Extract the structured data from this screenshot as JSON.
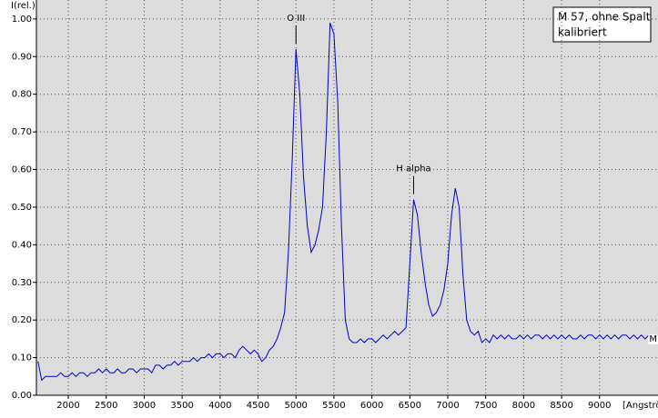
{
  "chart_data": {
    "type": "line",
    "y_label": "I(rel.)",
    "x_label": "[Angström]",
    "legend_text": [
      "M 57, ohne Spalt",
      "kalibriert"
    ],
    "annotations": [
      "O III",
      "H alpha"
    ],
    "grid": true,
    "xlim": [
      1580,
      9770
    ],
    "ylim": [
      0,
      1.02
    ],
    "xticks": [
      2000,
      2500,
      3000,
      3500,
      4000,
      4500,
      5000,
      5500,
      6000,
      6500,
      7000,
      7500,
      8000,
      8500,
      9000
    ],
    "yticks": [
      {
        "value": 0,
        "label": "0.00"
      },
      {
        "value": 0.1,
        "label": "0.10"
      },
      {
        "value": 0.2,
        "label": "0.20"
      },
      {
        "value": 0.3,
        "label": "0.30"
      },
      {
        "value": 0.4,
        "label": "0.40"
      },
      {
        "value": 0.5,
        "label": "0.50"
      },
      {
        "value": 0.6,
        "label": "0.60"
      },
      {
        "value": 0.7,
        "label": "0.70"
      },
      {
        "value": 0.8,
        "label": "0.80"
      },
      {
        "value": 0.9,
        "label": "0.90"
      },
      {
        "value": 1,
        "label": "1.00"
      }
    ],
    "x": [
      1600,
      1650,
      1700,
      1750,
      1800,
      1850,
      1900,
      1950,
      2000,
      2050,
      2100,
      2150,
      2200,
      2250,
      2300,
      2350,
      2400,
      2450,
      2500,
      2550,
      2600,
      2650,
      2700,
      2750,
      2800,
      2850,
      2900,
      2950,
      3000,
      3050,
      3100,
      3150,
      3200,
      3250,
      3300,
      3350,
      3400,
      3450,
      3500,
      3550,
      3600,
      3650,
      3700,
      3750,
      3800,
      3850,
      3900,
      3950,
      4000,
      4050,
      4100,
      4150,
      4200,
      4250,
      4300,
      4350,
      4400,
      4450,
      4500,
      4550,
      4600,
      4650,
      4700,
      4750,
      4800,
      4850,
      4900,
      4950,
      5000,
      5050,
      5100,
      5150,
      5200,
      5250,
      5300,
      5350,
      5400,
      5450,
      5500,
      5550,
      5600,
      5650,
      5700,
      5750,
      5800,
      5850,
      5900,
      5950,
      6000,
      6050,
      6100,
      6150,
      6200,
      6250,
      6300,
      6350,
      6400,
      6450,
      6500,
      6550,
      6600,
      6650,
      6700,
      6750,
      6800,
      6850,
      6900,
      6950,
      7000,
      7050,
      7100,
      7150,
      7200,
      7250,
      7300,
      7350,
      7400,
      7450,
      7500,
      7550,
      7600,
      7650,
      7700,
      7750,
      7800,
      7850,
      7900,
      7950,
      8000,
      8050,
      8100,
      8150,
      8200,
      8250,
      8300,
      8350,
      8400,
      8450,
      8500,
      8550,
      8600,
      8650,
      8700,
      8750,
      8800,
      8850,
      8900,
      8950,
      9000,
      9050,
      9100,
      9150,
      9200,
      9250,
      9300,
      9350,
      9400,
      9450,
      9500,
      9550,
      9600,
      9650,
      9700,
      9750
    ],
    "series": [
      {
        "name": "M 57",
        "color": "#0000cc",
        "values": [
          0.09,
          0.04,
          0.05,
          0.05,
          0.05,
          0.05,
          0.06,
          0.05,
          0.05,
          0.06,
          0.05,
          0.06,
          0.06,
          0.05,
          0.06,
          0.06,
          0.07,
          0.06,
          0.07,
          0.06,
          0.06,
          0.07,
          0.06,
          0.06,
          0.07,
          0.07,
          0.06,
          0.07,
          0.07,
          0.07,
          0.06,
          0.08,
          0.08,
          0.07,
          0.08,
          0.08,
          0.09,
          0.08,
          0.09,
          0.09,
          0.09,
          0.1,
          0.09,
          0.1,
          0.1,
          0.11,
          0.1,
          0.11,
          0.11,
          0.1,
          0.11,
          0.11,
          0.1,
          0.12,
          0.13,
          0.12,
          0.11,
          0.12,
          0.11,
          0.09,
          0.1,
          0.12,
          0.13,
          0.15,
          0.18,
          0.22,
          0.38,
          0.62,
          0.92,
          0.8,
          0.58,
          0.45,
          0.38,
          0.4,
          0.44,
          0.5,
          0.7,
          0.99,
          0.96,
          0.78,
          0.45,
          0.2,
          0.15,
          0.14,
          0.14,
          0.15,
          0.14,
          0.15,
          0.15,
          0.14,
          0.15,
          0.16,
          0.15,
          0.16,
          0.17,
          0.16,
          0.17,
          0.18,
          0.35,
          0.52,
          0.48,
          0.38,
          0.3,
          0.24,
          0.21,
          0.22,
          0.24,
          0.28,
          0.35,
          0.48,
          0.55,
          0.5,
          0.32,
          0.2,
          0.17,
          0.16,
          0.17,
          0.14,
          0.15,
          0.14,
          0.16,
          0.15,
          0.16,
          0.15,
          0.16,
          0.15,
          0.15,
          0.16,
          0.15,
          0.16,
          0.15,
          0.16,
          0.16,
          0.15,
          0.16,
          0.15,
          0.16,
          0.15,
          0.16,
          0.15,
          0.16,
          0.15,
          0.15,
          0.16,
          0.15,
          0.16,
          0.16,
          0.15,
          0.16,
          0.15,
          0.16,
          0.15,
          0.16,
          0.15,
          0.16,
          0.16,
          0.15,
          0.16,
          0.15,
          0.16,
          0.15,
          0.16,
          0.15,
          0.15
        ]
      }
    ]
  }
}
